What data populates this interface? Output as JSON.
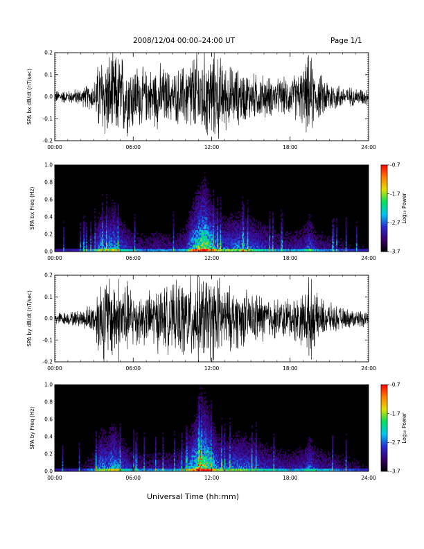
{
  "header": {
    "title": "2008/12/04   00:00–24:00 UT",
    "page": "Page 1/1"
  },
  "xaxis_label": "Universal Time (hh:mm)",
  "colors": {
    "trace": "#000000",
    "spectrogram_background": "#000000",
    "colorbar": [
      "#000000",
      "#3a0070",
      "#2a2ccf",
      "#00c8f0",
      "#00e060",
      "#e0e000",
      "#ff8000",
      "#ff0000"
    ]
  },
  "chart_data": [
    {
      "type": "line",
      "ylabel": "SPA bx dB/dt (nT/sec)",
      "xlim": [
        0,
        24
      ],
      "ylim": [
        -0.2,
        0.2
      ],
      "x_ticks": [
        "00:00",
        "06:00",
        "12:00",
        "18:00",
        "24:00"
      ],
      "y_ticks": [
        "-0.2",
        "-0.1",
        "0.0",
        "0.1",
        "0.2"
      ],
      "series": [
        {
          "x": [
            0,
            1,
            2,
            3,
            3.5,
            4,
            4.5,
            5,
            6,
            7,
            8,
            9,
            10,
            10.5,
            11,
            11.5,
            12,
            12.5,
            13,
            14,
            15,
            16,
            17,
            18,
            19,
            19.5,
            20,
            21,
            22,
            23,
            24
          ],
          "amplitude": [
            0.03,
            0.03,
            0.04,
            0.07,
            0.2,
            0.2,
            0.2,
            0.2,
            0.16,
            0.12,
            0.15,
            0.11,
            0.15,
            0.2,
            0.2,
            0.2,
            0.2,
            0.2,
            0.15,
            0.13,
            0.11,
            0.1,
            0.08,
            0.09,
            0.13,
            0.2,
            0.11,
            0.08,
            0.05,
            0.04,
            0.04
          ]
        }
      ]
    },
    {
      "type": "heatmap",
      "ylabel": "SPA bx Freq (Hz)",
      "xlim": [
        0,
        24
      ],
      "ylim": [
        0,
        1.0
      ],
      "x_ticks": [
        "00:00",
        "06:00",
        "12:00",
        "18:00",
        "24:00"
      ],
      "y_ticks": [
        "0.0",
        "0.2",
        "0.4",
        "0.6",
        "0.8",
        "1.0"
      ],
      "colorbar": {
        "label": "Log₁₀ Power",
        "ticks": [
          "-0.7",
          "-1.7",
          "-2.7",
          "-3.7"
        ],
        "range": [
          -3.7,
          -0.7
        ]
      },
      "series": [
        {
          "x": [
            0,
            1,
            2,
            3,
            3.5,
            4,
            4.5,
            5,
            6,
            7,
            8,
            9,
            10,
            10.5,
            11,
            11.5,
            12,
            12.5,
            13,
            14,
            15,
            16,
            17,
            18,
            19,
            19.5,
            20,
            21,
            22,
            23,
            24
          ],
          "activity": [
            0.1,
            0.1,
            0.15,
            0.3,
            0.6,
            0.55,
            0.7,
            0.5,
            0.3,
            0.25,
            0.3,
            0.25,
            0.35,
            0.7,
            0.9,
            1.0,
            0.75,
            0.55,
            0.5,
            0.55,
            0.5,
            0.4,
            0.3,
            0.3,
            0.35,
            0.5,
            0.3,
            0.25,
            0.2,
            0.15,
            0.15
          ]
        }
      ]
    },
    {
      "type": "line",
      "ylabel": "SPA by dB/dt (nT/sec)",
      "xlim": [
        0,
        24
      ],
      "ylim": [
        -0.2,
        0.2
      ],
      "x_ticks": [
        "00:00",
        "06:00",
        "12:00",
        "18:00",
        "24:00"
      ],
      "y_ticks": [
        "-0.2",
        "-0.1",
        "0.0",
        "0.1",
        "0.2"
      ],
      "series": [
        {
          "x": [
            0,
            1,
            2,
            3,
            3.5,
            4,
            4.5,
            5,
            6,
            7,
            8,
            9,
            10,
            10.5,
            11,
            11.5,
            12,
            12.5,
            13,
            14,
            15,
            16,
            17,
            18,
            19,
            19.5,
            20,
            21,
            22,
            23,
            24
          ],
          "amplitude": [
            0.03,
            0.03,
            0.04,
            0.08,
            0.2,
            0.2,
            0.2,
            0.2,
            0.14,
            0.12,
            0.15,
            0.15,
            0.19,
            0.2,
            0.2,
            0.2,
            0.2,
            0.2,
            0.15,
            0.14,
            0.12,
            0.11,
            0.09,
            0.1,
            0.12,
            0.2,
            0.11,
            0.07,
            0.05,
            0.04,
            0.04
          ]
        }
      ]
    },
    {
      "type": "heatmap",
      "ylabel": "SPA by Freq (Hz)",
      "xlim": [
        0,
        24
      ],
      "ylim": [
        0,
        1.0
      ],
      "x_ticks": [
        "00:00",
        "06:00",
        "12:00",
        "18:00",
        "24:00"
      ],
      "y_ticks": [
        "0.0",
        "0.2",
        "0.4",
        "0.6",
        "0.8",
        "1.0"
      ],
      "colorbar": {
        "label": "Log₁₀ Power",
        "ticks": [
          "-0.7",
          "-1.7",
          "-2.7",
          "-3.7"
        ],
        "range": [
          -3.7,
          -0.7
        ]
      },
      "series": [
        {
          "x": [
            0,
            1,
            2,
            3,
            3.5,
            4,
            4.5,
            5,
            6,
            7,
            8,
            9,
            10,
            10.5,
            11,
            11.5,
            12,
            12.5,
            13,
            14,
            15,
            16,
            17,
            18,
            19,
            19.5,
            20,
            21,
            22,
            23,
            24
          ],
          "activity": [
            0.12,
            0.12,
            0.15,
            0.3,
            0.6,
            0.55,
            0.7,
            0.5,
            0.3,
            0.25,
            0.3,
            0.3,
            0.4,
            0.7,
            0.9,
            1.0,
            0.75,
            0.55,
            0.5,
            0.55,
            0.5,
            0.4,
            0.35,
            0.3,
            0.35,
            0.5,
            0.35,
            0.3,
            0.25,
            0.2,
            0.15
          ]
        }
      ]
    }
  ]
}
